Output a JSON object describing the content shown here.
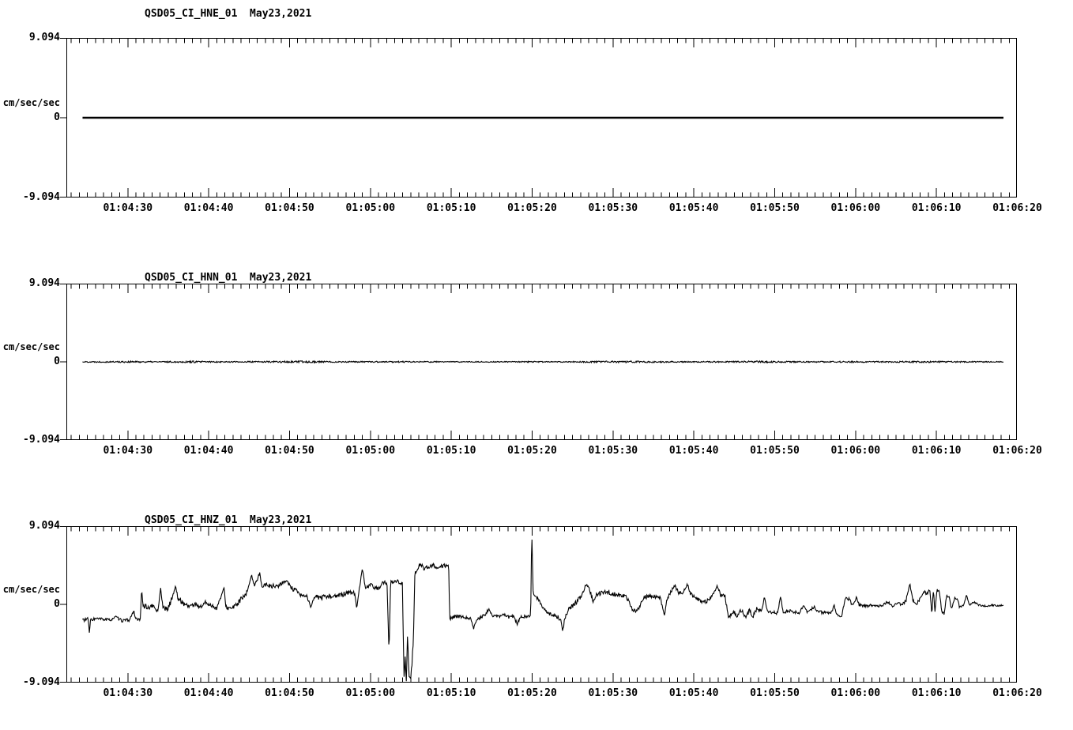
{
  "page": {
    "background": "#ffffff",
    "line_color": "#000000"
  },
  "time_axis": {
    "t_min_s": 22.4,
    "t_max_s": 139.95,
    "minor_tick_step_s": 1,
    "major_tick_times_s": [
      30,
      40,
      50,
      60,
      70,
      80,
      90,
      100,
      110,
      120,
      130,
      140
    ],
    "tick_labels": [
      "01:04:30",
      "01:04:40",
      "01:04:50",
      "01:05:00",
      "01:05:10",
      "01:05:20",
      "01:05:30",
      "01:05:40",
      "01:05:50",
      "01:06:00",
      "01:06:10",
      "01:06:20"
    ]
  },
  "chart_data": [
    {
      "type": "line",
      "title": "QSD05_CI_HNE_01  May23,2021",
      "station_channel": "QSD05_CI_HNE_01",
      "date": "May23,2021",
      "ylabel": "cm/sec/sec",
      "ylim": [
        -9.094,
        9.094
      ],
      "y_tick_labels": [
        "9.094",
        "0",
        "-9.094"
      ],
      "x_tick_labels": [
        "01:04:30",
        "01:04:40",
        "01:04:50",
        "01:05:00",
        "01:05:10",
        "01:05:20",
        "01:05:30",
        "01:05:40",
        "01:05:50",
        "01:06:00",
        "01:06:10",
        "01:06:20"
      ],
      "line_width": 2.6,
      "noise_seed": 11,
      "keypoints": [
        [
          24.4,
          0,
          0
        ],
        [
          138.3,
          0,
          0
        ]
      ]
    },
    {
      "type": "line",
      "title": "QSD05_CI_HNN_01  May23,2021",
      "station_channel": "QSD05_CI_HNN_01",
      "date": "May23,2021",
      "ylabel": "cm/sec/sec",
      "ylim": [
        -9.094,
        9.094
      ],
      "y_tick_labels": [
        "9.094",
        "0",
        "-9.094"
      ],
      "x_tick_labels": [
        "01:04:30",
        "01:04:40",
        "01:04:50",
        "01:05:00",
        "01:05:10",
        "01:05:20",
        "01:05:30",
        "01:05:40",
        "01:05:50",
        "01:06:00",
        "01:06:10",
        "01:06:20"
      ],
      "line_width": 1.1,
      "noise_seed": 22,
      "keypoints": [
        [
          24.4,
          0,
          0.06
        ],
        [
          30,
          0,
          0.1
        ],
        [
          34,
          0,
          0.07
        ],
        [
          38,
          0,
          0.11
        ],
        [
          42,
          0,
          0.07
        ],
        [
          47,
          0,
          0.09
        ],
        [
          52,
          0,
          0.12
        ],
        [
          56,
          0,
          0.08
        ],
        [
          60,
          0,
          0.07
        ],
        [
          64,
          0,
          0.09
        ],
        [
          68,
          0,
          0.07
        ],
        [
          72,
          0,
          0.06
        ],
        [
          76,
          0,
          0.06
        ],
        [
          80,
          0,
          0.07
        ],
        [
          84,
          0,
          0.06
        ],
        [
          88,
          0,
          0.1
        ],
        [
          92,
          0,
          0.12
        ],
        [
          96,
          0,
          0.08
        ],
        [
          100,
          0,
          0.07
        ],
        [
          104,
          0,
          0.09
        ],
        [
          108,
          0,
          0.12
        ],
        [
          112,
          0,
          0.08
        ],
        [
          116,
          0,
          0.07
        ],
        [
          120,
          0,
          0.09
        ],
        [
          124,
          0,
          0.07
        ],
        [
          128,
          0,
          0.1
        ],
        [
          132,
          0,
          0.08
        ],
        [
          138.3,
          0,
          0.06
        ]
      ]
    },
    {
      "type": "line",
      "title": "QSD05_CI_HNZ_01  May23,2021",
      "station_channel": "QSD05_CI_HNZ_01",
      "date": "May23,2021",
      "ylabel": "cm/sec/sec",
      "ylim": [
        -9.094,
        9.094
      ],
      "y_tick_labels": [
        "9.094",
        "0",
        "-9.094"
      ],
      "x_tick_labels": [
        "01:04:30",
        "01:04:40",
        "01:04:50",
        "01:05:00",
        "01:05:10",
        "01:05:20",
        "01:05:30",
        "01:05:40",
        "01:05:50",
        "01:06:00",
        "01:06:10",
        "01:06:20"
      ],
      "line_width": 1.1,
      "noise_seed": 33,
      "keypoints": [
        [
          24.4,
          -1.8,
          0.22
        ],
        [
          25.1,
          -1.75,
          0.22
        ],
        [
          25.25,
          -3.4,
          0.05
        ],
        [
          25.4,
          -1.75,
          0.22
        ],
        [
          26.2,
          -1.7,
          0.18
        ],
        [
          27,
          -1.75,
          0.18
        ],
        [
          27.8,
          -1.85,
          0.18
        ],
        [
          28.5,
          -1.45,
          0.12
        ],
        [
          29.2,
          -1.9,
          0.18
        ],
        [
          30.2,
          -1.85,
          0.18
        ],
        [
          30.75,
          -0.7,
          0.08
        ],
        [
          30.95,
          -1.75,
          0.18
        ],
        [
          31.55,
          -1.8,
          0.15
        ],
        [
          31.7,
          1.7,
          0.08
        ],
        [
          31.9,
          -0.1,
          0.28
        ],
        [
          32.5,
          -0.4,
          0.28
        ],
        [
          33.2,
          -0.2,
          0.3
        ],
        [
          33.7,
          -0.9,
          0.18
        ],
        [
          34.05,
          1.9,
          0.12
        ],
        [
          34.35,
          -0.35,
          0.28
        ],
        [
          34.9,
          -0.6,
          0.25
        ],
        [
          35.3,
          0.3,
          0.3
        ],
        [
          35.9,
          2.1,
          0.15
        ],
        [
          36.2,
          0.7,
          0.25
        ],
        [
          36.9,
          0.1,
          0.28
        ],
        [
          37.6,
          -0.2,
          0.25
        ],
        [
          38.3,
          0,
          0.28
        ],
        [
          39,
          -0.3,
          0.25
        ],
        [
          39.6,
          0.2,
          0.28
        ],
        [
          40.3,
          -0.1,
          0.25
        ],
        [
          41,
          -0.45,
          0.25
        ],
        [
          41.9,
          1.9,
          0.1
        ],
        [
          42.15,
          -0.35,
          0.28
        ],
        [
          42.8,
          -0.5,
          0.25
        ],
        [
          43.4,
          -0.1,
          0.28
        ],
        [
          44,
          0.6,
          0.3
        ],
        [
          44.6,
          1,
          0.3
        ],
        [
          45.3,
          3.5,
          0.12
        ],
        [
          45.65,
          2,
          0.3
        ],
        [
          46.3,
          3.7,
          0.1
        ],
        [
          46.6,
          2.2,
          0.3
        ],
        [
          47.3,
          2.3,
          0.28
        ],
        [
          48.2,
          2.1,
          0.28
        ],
        [
          49,
          2.35,
          0.28
        ],
        [
          49.6,
          2.9,
          0.2
        ],
        [
          50.2,
          1.9,
          0.28
        ],
        [
          50.9,
          1.5,
          0.28
        ],
        [
          51.5,
          0.95,
          0.25
        ],
        [
          52.1,
          1.05,
          0.28
        ],
        [
          52.65,
          -0.4,
          0.15
        ],
        [
          53.1,
          0.9,
          0.28
        ],
        [
          54,
          0.8,
          0.28
        ],
        [
          55,
          1,
          0.28
        ],
        [
          56,
          0.95,
          0.28
        ],
        [
          56.7,
          1.2,
          0.28
        ],
        [
          57.4,
          1.45,
          0.28
        ],
        [
          58.05,
          1.3,
          0.25
        ],
        [
          58.3,
          -0.4,
          0.1
        ],
        [
          58.6,
          1.6,
          0.28
        ],
        [
          59,
          4.1,
          0.12
        ],
        [
          59.4,
          2,
          0.28
        ],
        [
          60.1,
          2.2,
          0.28
        ],
        [
          60.8,
          1.85,
          0.28
        ],
        [
          61.5,
          2.4,
          0.28
        ],
        [
          62.05,
          2.6,
          0.25
        ],
        [
          62.3,
          -5.7,
          0.05
        ],
        [
          62.5,
          2.5,
          0.28
        ],
        [
          63.1,
          2.85,
          0.25
        ],
        [
          63.6,
          2.6,
          0.25
        ],
        [
          63.95,
          2.45,
          0.2
        ],
        [
          64.15,
          -8.5,
          0.3
        ],
        [
          64.3,
          -6.5,
          0.5
        ],
        [
          64.45,
          -9.05,
          0.2
        ],
        [
          64.6,
          -3.2,
          0.5
        ],
        [
          64.75,
          -8,
          0.5
        ],
        [
          64.9,
          -9.05,
          0.15
        ],
        [
          65.1,
          -7.5,
          0.5
        ],
        [
          65.32,
          -4,
          0.3
        ],
        [
          65.5,
          3.6,
          0.2
        ],
        [
          65.85,
          4.3,
          0.25
        ],
        [
          66.2,
          4.8,
          0.2
        ],
        [
          66.65,
          4.2,
          0.28
        ],
        [
          67.2,
          4.45,
          0.25
        ],
        [
          67.8,
          4.6,
          0.22
        ],
        [
          68.4,
          4.3,
          0.25
        ],
        [
          69,
          4.5,
          0.25
        ],
        [
          69.5,
          4.6,
          0.2
        ],
        [
          69.68,
          4.4,
          0.15
        ],
        [
          69.8,
          -1.7,
          0.18
        ],
        [
          70.3,
          -1.5,
          0.22
        ],
        [
          71.1,
          -1.4,
          0.18
        ],
        [
          71.9,
          -1.55,
          0.18
        ],
        [
          72.45,
          -1.7,
          0.18
        ],
        [
          72.75,
          -2.9,
          0.12
        ],
        [
          73.1,
          -1.8,
          0.18
        ],
        [
          73.7,
          -1.5,
          0.18
        ],
        [
          74.25,
          -1.15,
          0.22
        ],
        [
          74.65,
          -0.6,
          0.25
        ],
        [
          75.1,
          -1.3,
          0.18
        ],
        [
          75.9,
          -1.45,
          0.18
        ],
        [
          76.5,
          -1.2,
          0.18
        ],
        [
          77.1,
          -1.5,
          0.18
        ],
        [
          77.7,
          -1.4,
          0.18
        ],
        [
          78.15,
          -2.3,
          0.15
        ],
        [
          78.55,
          -1.5,
          0.18
        ],
        [
          79.2,
          -1.4,
          0.18
        ],
        [
          79.82,
          -1.4,
          0.1
        ],
        [
          79.95,
          8.85,
          0.05
        ],
        [
          80.12,
          1.45,
          0.18
        ],
        [
          80.5,
          0.9,
          0.22
        ],
        [
          81,
          0.3,
          0.22
        ],
        [
          81.5,
          -0.6,
          0.22
        ],
        [
          82.05,
          -1.1,
          0.22
        ],
        [
          82.6,
          -1.3,
          0.2
        ],
        [
          83.2,
          -1.45,
          0.22
        ],
        [
          83.62,
          -2.1,
          0.18
        ],
        [
          83.78,
          -3.2,
          0.1
        ],
        [
          84.05,
          -1.6,
          0.28
        ],
        [
          84.55,
          -0.6,
          0.28
        ],
        [
          85.05,
          -0.1,
          0.28
        ],
        [
          85.6,
          0.4,
          0.28
        ],
        [
          86.2,
          1.2,
          0.28
        ],
        [
          86.75,
          2.5,
          0.2
        ],
        [
          87.15,
          1.6,
          0.25
        ],
        [
          87.55,
          0.4,
          0.2
        ],
        [
          87.95,
          1.1,
          0.25
        ],
        [
          88.55,
          1.3,
          0.25
        ],
        [
          89.25,
          1.45,
          0.25
        ],
        [
          90.05,
          1.2,
          0.25
        ],
        [
          90.85,
          1.1,
          0.25
        ],
        [
          91.65,
          0.9,
          0.25
        ],
        [
          92.35,
          -0.5,
          0.22
        ],
        [
          92.85,
          -0.9,
          0.18
        ],
        [
          93.25,
          -0.3,
          0.22
        ],
        [
          93.85,
          0.8,
          0.25
        ],
        [
          94.55,
          1,
          0.22
        ],
        [
          95.25,
          0.9,
          0.22
        ],
        [
          95.85,
          0.8,
          0.22
        ],
        [
          96.35,
          -1.4,
          0.12
        ],
        [
          96.65,
          0.6,
          0.22
        ],
        [
          97.2,
          1.5,
          0.25
        ],
        [
          97.65,
          2.3,
          0.18
        ],
        [
          98.05,
          1.4,
          0.25
        ],
        [
          98.65,
          1.3,
          0.25
        ],
        [
          99.2,
          2.4,
          0.15
        ],
        [
          99.6,
          1.2,
          0.25
        ],
        [
          100.2,
          0.7,
          0.22
        ],
        [
          100.9,
          0.4,
          0.22
        ],
        [
          101.5,
          0.3,
          0.22
        ],
        [
          102.2,
          0.9,
          0.25
        ],
        [
          102.9,
          2.2,
          0.12
        ],
        [
          103.25,
          1.2,
          0.25
        ],
        [
          103.85,
          0.9,
          0.25
        ],
        [
          104.3,
          -1.6,
          0.15
        ],
        [
          104.85,
          -0.9,
          0.28
        ],
        [
          105.35,
          -1.3,
          0.25
        ],
        [
          105.85,
          -0.7,
          0.3
        ],
        [
          106.35,
          -1.5,
          0.25
        ],
        [
          106.85,
          -0.8,
          0.28
        ],
        [
          107.35,
          -1.4,
          0.25
        ],
        [
          107.85,
          -0.4,
          0.25
        ],
        [
          108.35,
          -0.9,
          0.22
        ],
        [
          108.72,
          0.9,
          0.1
        ],
        [
          109.05,
          -0.8,
          0.22
        ],
        [
          109.75,
          -0.9,
          0.2
        ],
        [
          110.35,
          -1,
          0.2
        ],
        [
          110.72,
          0.9,
          0.08
        ],
        [
          111.05,
          -0.9,
          0.2
        ],
        [
          111.75,
          -0.8,
          0.2
        ],
        [
          112.45,
          -0.9,
          0.18
        ],
        [
          113.05,
          -1,
          0.18
        ],
        [
          113.55,
          -0.1,
          0.12
        ],
        [
          114.05,
          -0.9,
          0.18
        ],
        [
          114.85,
          -0.3,
          0.18
        ],
        [
          115.45,
          -0.9,
          0.18
        ],
        [
          116.25,
          -1,
          0.18
        ],
        [
          117.05,
          -0.9,
          0.15
        ],
        [
          117.35,
          -0.1,
          0.08
        ],
        [
          117.65,
          -1.2,
          0.15
        ],
        [
          118.25,
          -1.45,
          0.15
        ],
        [
          118.75,
          0.8,
          0.2
        ],
        [
          119.25,
          0.6,
          0.2
        ],
        [
          119.65,
          -0.2,
          0.18
        ],
        [
          120.12,
          0.9,
          0.1
        ],
        [
          120.45,
          -0.1,
          0.18
        ],
        [
          121.05,
          -0.2,
          0.15
        ],
        [
          121.85,
          -0.1,
          0.15
        ],
        [
          122.65,
          -0.2,
          0.15
        ],
        [
          123.35,
          -0.1,
          0.15
        ],
        [
          123.95,
          0.3,
          0.15
        ],
        [
          124.55,
          -0.2,
          0.15
        ],
        [
          125.15,
          0.2,
          0.15
        ],
        [
          125.75,
          -0.1,
          0.15
        ],
        [
          126.25,
          0.5,
          0.2
        ],
        [
          126.72,
          2.4,
          0.1
        ],
        [
          127.05,
          0.6,
          0.2
        ],
        [
          127.55,
          0.1,
          0.18
        ],
        [
          128.05,
          0.8,
          0.2
        ],
        [
          128.45,
          1.5,
          0.2
        ],
        [
          128.85,
          1.2,
          0.25
        ],
        [
          129.2,
          1.8,
          0.25
        ],
        [
          129.42,
          -1.2,
          0.15
        ],
        [
          129.62,
          1.7,
          0.25
        ],
        [
          129.82,
          -0.9,
          0.15
        ],
        [
          130.05,
          1.6,
          0.25
        ],
        [
          130.35,
          1.4,
          0.25
        ],
        [
          130.65,
          -0.8,
          0.2
        ],
        [
          130.95,
          -1.1,
          0.18
        ],
        [
          131.25,
          1,
          0.15
        ],
        [
          131.6,
          0.9,
          0.15
        ],
        [
          131.85,
          -0.5,
          0.15
        ],
        [
          132.25,
          0.8,
          0.15
        ],
        [
          132.6,
          0.7,
          0.15
        ],
        [
          132.85,
          -0.3,
          0.15
        ],
        [
          133.35,
          -0.2,
          0.12
        ],
        [
          133.72,
          1.1,
          0.08
        ],
        [
          134.05,
          -0.1,
          0.12
        ],
        [
          134.65,
          0.3,
          0.12
        ],
        [
          135.25,
          -0.1,
          0.1
        ],
        [
          136.05,
          -0.2,
          0.1
        ],
        [
          136.85,
          -0.1,
          0.1
        ],
        [
          137.65,
          -0.15,
          0.1
        ],
        [
          138.3,
          -0.1,
          0.1
        ]
      ]
    }
  ]
}
